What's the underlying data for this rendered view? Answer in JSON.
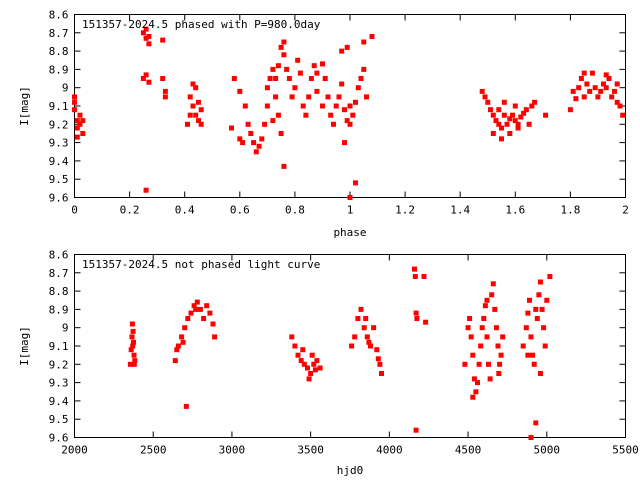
{
  "chart_data": [
    {
      "type": "scatter",
      "title": "151357-2024.5 phased with P=980.0day",
      "xlabel": "phase",
      "ylabel": "I[mag]",
      "xlim": [
        0,
        2
      ],
      "ylim": [
        8.6,
        9.6
      ],
      "y_inverted": true,
      "xticks": [
        "0",
        "0.2",
        "0.4",
        "0.6",
        "0.8",
        "1",
        "1.2",
        "1.4",
        "1.6",
        "1.8",
        "2"
      ],
      "yticks": [
        "8.6",
        "8.7",
        "8.8",
        "8.9",
        "9",
        "9.1",
        "9.2",
        "9.3",
        "9.4",
        "9.5",
        "9.6"
      ],
      "marker_color": "#ff0000",
      "legend": "none",
      "grid": false,
      "points": [
        [
          0.0,
          9.08
        ],
        [
          0.0,
          9.12
        ],
        [
          0.01,
          9.18
        ],
        [
          0.01,
          9.22
        ],
        [
          0.02,
          9.15
        ],
        [
          0.02,
          9.2
        ],
        [
          0.03,
          9.25
        ],
        [
          0.01,
          9.27
        ],
        [
          0.0,
          9.05
        ],
        [
          0.03,
          9.18
        ],
        [
          0.25,
          8.7
        ],
        [
          0.26,
          8.68
        ],
        [
          0.26,
          8.73
        ],
        [
          0.27,
          8.72
        ],
        [
          0.27,
          8.76
        ],
        [
          0.25,
          8.95
        ],
        [
          0.26,
          8.93
        ],
        [
          0.27,
          8.97
        ],
        [
          0.26,
          9.56
        ],
        [
          0.32,
          8.74
        ],
        [
          0.32,
          8.95
        ],
        [
          0.33,
          9.05
        ],
        [
          0.33,
          9.02
        ],
        [
          0.42,
          9.05
        ],
        [
          0.43,
          9.1
        ],
        [
          0.44,
          9.15
        ],
        [
          0.45,
          9.18
        ],
        [
          0.44,
          9.0
        ],
        [
          0.43,
          8.98
        ],
        [
          0.46,
          9.2
        ],
        [
          0.41,
          9.2
        ],
        [
          0.42,
          9.15
        ],
        [
          0.45,
          9.08
        ],
        [
          0.46,
          9.12
        ],
        [
          0.57,
          9.22
        ],
        [
          0.58,
          8.95
        ],
        [
          0.6,
          9.02
        ],
        [
          0.62,
          9.1
        ],
        [
          0.63,
          9.2
        ],
        [
          0.64,
          9.25
        ],
        [
          0.65,
          9.3
        ],
        [
          0.66,
          9.35
        ],
        [
          0.67,
          9.32
        ],
        [
          0.68,
          9.28
        ],
        [
          0.69,
          9.2
        ],
        [
          0.7,
          9.1
        ],
        [
          0.7,
          9.0
        ],
        [
          0.71,
          8.95
        ],
        [
          0.72,
          8.9
        ],
        [
          0.73,
          9.05
        ],
        [
          0.74,
          9.15
        ],
        [
          0.75,
          8.78
        ],
        [
          0.75,
          9.25
        ],
        [
          0.76,
          8.82
        ],
        [
          0.77,
          8.9
        ],
        [
          0.78,
          8.95
        ],
        [
          0.79,
          9.05
        ],
        [
          0.8,
          9.0
        ],
        [
          0.81,
          8.85
        ],
        [
          0.82,
          8.92
        ],
        [
          0.83,
          9.1
        ],
        [
          0.84,
          9.15
        ],
        [
          0.85,
          9.05
        ],
        [
          0.86,
          8.95
        ],
        [
          0.87,
          8.88
        ],
        [
          0.88,
          8.92
        ],
        [
          0.9,
          8.87
        ],
        [
          0.91,
          8.95
        ],
        [
          0.92,
          9.05
        ],
        [
          0.93,
          9.15
        ],
        [
          0.94,
          9.2
        ],
        [
          0.95,
          9.1
        ],
        [
          0.96,
          9.05
        ],
        [
          0.97,
          8.98
        ],
        [
          0.98,
          9.12
        ],
        [
          0.99,
          9.18
        ],
        [
          1.0,
          9.1
        ],
        [
          1.0,
          9.2
        ],
        [
          1.01,
          9.15
        ],
        [
          1.02,
          9.08
        ],
        [
          1.03,
          9.0
        ],
        [
          1.04,
          8.95
        ],
        [
          1.05,
          8.9
        ],
        [
          1.06,
          9.05
        ],
        [
          1.05,
          8.75
        ],
        [
          1.08,
          8.72
        ],
        [
          1.02,
          9.52
        ],
        [
          1.0,
          9.6
        ],
        [
          0.76,
          9.43
        ],
        [
          0.98,
          9.3
        ],
        [
          0.6,
          9.28
        ],
        [
          0.61,
          9.3
        ],
        [
          0.72,
          9.18
        ],
        [
          0.73,
          8.95
        ],
        [
          0.74,
          8.88
        ],
        [
          0.76,
          8.75
        ],
        [
          0.88,
          9.02
        ],
        [
          0.9,
          9.1
        ],
        [
          0.97,
          8.8
        ],
        [
          0.99,
          8.78
        ],
        [
          1.48,
          9.02
        ],
        [
          1.49,
          9.05
        ],
        [
          1.5,
          9.08
        ],
        [
          1.51,
          9.12
        ],
        [
          1.52,
          9.15
        ],
        [
          1.53,
          9.18
        ],
        [
          1.54,
          9.2
        ],
        [
          1.55,
          9.22
        ],
        [
          1.56,
          9.15
        ],
        [
          1.57,
          9.2
        ],
        [
          1.58,
          9.17
        ],
        [
          1.59,
          9.15
        ],
        [
          1.6,
          9.18
        ],
        [
          1.61,
          9.2
        ],
        [
          1.62,
          9.16
        ],
        [
          1.63,
          9.14
        ],
        [
          1.64,
          9.12
        ],
        [
          1.65,
          9.2
        ],
        [
          1.66,
          9.1
        ],
        [
          1.67,
          9.08
        ],
        [
          1.52,
          9.25
        ],
        [
          1.55,
          9.28
        ],
        [
          1.58,
          9.25
        ],
        [
          1.61,
          9.22
        ],
        [
          1.71,
          9.15
        ],
        [
          1.54,
          9.12
        ],
        [
          1.56,
          9.08
        ],
        [
          1.6,
          9.1
        ],
        [
          1.81,
          9.02
        ],
        [
          1.82,
          9.06
        ],
        [
          1.83,
          9.0
        ],
        [
          1.84,
          8.95
        ],
        [
          1.85,
          9.05
        ],
        [
          1.86,
          8.98
        ],
        [
          1.87,
          9.02
        ],
        [
          1.88,
          8.92
        ],
        [
          1.89,
          9.0
        ],
        [
          1.9,
          9.05
        ],
        [
          1.91,
          9.02
        ],
        [
          1.92,
          8.98
        ],
        [
          1.93,
          9.0
        ],
        [
          1.94,
          8.95
        ],
        [
          1.95,
          9.05
        ],
        [
          1.96,
          9.02
        ],
        [
          1.97,
          8.98
        ],
        [
          1.98,
          9.1
        ],
        [
          1.99,
          9.15
        ],
        [
          1.8,
          9.12
        ],
        [
          1.85,
          8.92
        ],
        [
          1.93,
          8.93
        ],
        [
          1.97,
          9.08
        ]
      ]
    },
    {
      "type": "scatter",
      "title": "151357-2024.5 not phased light curve",
      "xlabel": "hjd0",
      "ylabel": "I[mag]",
      "xlim": [
        2000,
        5500
      ],
      "ylim": [
        8.6,
        9.6
      ],
      "y_inverted": true,
      "xticks": [
        "2000",
        "2500",
        "3000",
        "3500",
        "4000",
        "4500",
        "5000",
        "5500"
      ],
      "yticks": [
        "8.6",
        "8.7",
        "8.8",
        "8.9",
        "9",
        "9.1",
        "9.2",
        "9.3",
        "9.4",
        "9.5",
        "9.6"
      ],
      "marker_color": "#ff0000",
      "legend": "none",
      "grid": false,
      "points": [
        [
          2355,
          9.2
        ],
        [
          2360,
          9.12
        ],
        [
          2365,
          9.05
        ],
        [
          2368,
          8.98
        ],
        [
          2372,
          9.02
        ],
        [
          2375,
          9.08
        ],
        [
          2378,
          9.15
        ],
        [
          2380,
          9.2
        ],
        [
          2383,
          9.18
        ],
        [
          2370,
          9.1
        ],
        [
          2640,
          9.18
        ],
        [
          2660,
          9.1
        ],
        [
          2680,
          9.05
        ],
        [
          2700,
          9.0
        ],
        [
          2720,
          8.95
        ],
        [
          2740,
          8.92
        ],
        [
          2760,
          8.88
        ],
        [
          2780,
          8.86
        ],
        [
          2800,
          8.9
        ],
        [
          2820,
          8.95
        ],
        [
          2840,
          8.88
        ],
        [
          2860,
          8.92
        ],
        [
          2880,
          8.98
        ],
        [
          2890,
          9.05
        ],
        [
          2710,
          9.43
        ],
        [
          2650,
          9.12
        ],
        [
          2690,
          9.08
        ],
        [
          2770,
          8.9
        ],
        [
          3380,
          9.05
        ],
        [
          3400,
          9.1
        ],
        [
          3420,
          9.15
        ],
        [
          3440,
          9.18
        ],
        [
          3460,
          9.2
        ],
        [
          3480,
          9.22
        ],
        [
          3500,
          9.25
        ],
        [
          3520,
          9.2
        ],
        [
          3540,
          9.18
        ],
        [
          3560,
          9.22
        ],
        [
          3450,
          9.12
        ],
        [
          3490,
          9.28
        ],
        [
          3510,
          9.15
        ],
        [
          3530,
          9.23
        ],
        [
          3760,
          9.1
        ],
        [
          3780,
          9.05
        ],
        [
          3800,
          8.95
        ],
        [
          3820,
          8.9
        ],
        [
          3840,
          9.0
        ],
        [
          3860,
          9.05
        ],
        [
          3880,
          9.1
        ],
        [
          3900,
          9.0
        ],
        [
          3920,
          9.12
        ],
        [
          3940,
          9.2
        ],
        [
          3950,
          9.25
        ],
        [
          3850,
          8.95
        ],
        [
          3870,
          9.08
        ],
        [
          3930,
          9.17
        ],
        [
          4160,
          8.68
        ],
        [
          4165,
          8.72
        ],
        [
          4170,
          8.92
        ],
        [
          4175,
          8.95
        ],
        [
          4220,
          8.72
        ],
        [
          4230,
          8.97
        ],
        [
          4170,
          9.56
        ],
        [
          4480,
          9.2
        ],
        [
          4500,
          9.0
        ],
        [
          4510,
          8.95
        ],
        [
          4520,
          9.05
        ],
        [
          4530,
          9.15
        ],
        [
          4540,
          9.28
        ],
        [
          4550,
          9.35
        ],
        [
          4560,
          9.3
        ],
        [
          4570,
          9.2
        ],
        [
          4580,
          9.1
        ],
        [
          4590,
          9.0
        ],
        [
          4600,
          8.95
        ],
        [
          4610,
          8.88
        ],
        [
          4620,
          9.05
        ],
        [
          4630,
          9.2
        ],
        [
          4640,
          9.28
        ],
        [
          4650,
          8.82
        ],
        [
          4660,
          8.76
        ],
        [
          4670,
          8.9
        ],
        [
          4680,
          9.0
        ],
        [
          4690,
          9.1
        ],
        [
          4700,
          9.2
        ],
        [
          4710,
          9.15
        ],
        [
          4720,
          9.05
        ],
        [
          4530,
          9.38
        ],
        [
          4620,
          8.85
        ],
        [
          4695,
          9.25
        ],
        [
          4850,
          9.1
        ],
        [
          4870,
          9.0
        ],
        [
          4880,
          8.92
        ],
        [
          4890,
          8.85
        ],
        [
          4900,
          9.05
        ],
        [
          4910,
          9.15
        ],
        [
          4920,
          9.2
        ],
        [
          4930,
          8.9
        ],
        [
          4940,
          8.95
        ],
        [
          4950,
          8.82
        ],
        [
          4960,
          8.75
        ],
        [
          4970,
          8.9
        ],
        [
          4980,
          9.0
        ],
        [
          4990,
          9.1
        ],
        [
          5000,
          8.85
        ],
        [
          5020,
          8.72
        ],
        [
          4900,
          9.6
        ],
        [
          4930,
          9.52
        ],
        [
          4960,
          9.25
        ],
        [
          4880,
          9.15
        ]
      ]
    }
  ]
}
